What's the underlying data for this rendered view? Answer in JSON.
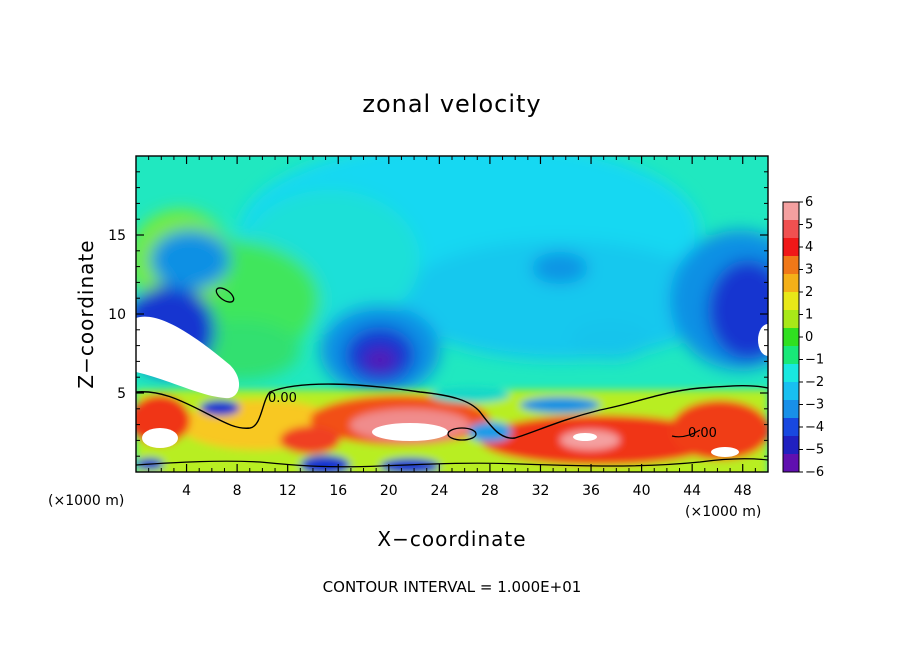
{
  "chart_data": {
    "type": "heatmap",
    "title": "zonal velocity",
    "xlabel": "X−coordinate",
    "ylabel": "Z−coordinate",
    "x_unit_left": "(×1000 m)",
    "x_unit_right": "(×1000 m)",
    "xlim": [
      0,
      50
    ],
    "ylim": [
      0,
      20
    ],
    "x_ticks": [
      4,
      8,
      12,
      16,
      20,
      24,
      28,
      32,
      36,
      40,
      44,
      48
    ],
    "x_tick_labels": [
      "4",
      "8",
      "12",
      "16",
      "20",
      "24",
      "28",
      "32",
      "36",
      "40",
      "44",
      "48"
    ],
    "y_ticks": [
      5,
      10,
      15
    ],
    "y_tick_labels": [
      "5",
      "10",
      "15"
    ],
    "colorbar": {
      "min": -6,
      "max": 6,
      "tick_values": [
        6,
        5,
        4,
        3,
        2,
        1,
        0,
        -1,
        -2,
        -3,
        -4,
        -5,
        -6
      ],
      "tick_labels": [
        "6",
        "5",
        "4",
        "3",
        "2",
        "1",
        "0",
        "−1",
        "−2",
        "−3",
        "−4",
        "−5",
        "−6"
      ]
    },
    "contour_labels": [
      "0.00",
      "0.00"
    ],
    "annotation": "CONTOUR INTERVAL = 1.000E+01",
    "field_features": [
      {
        "x": 4,
        "z": 8.5,
        "value": -7,
        "desc": "strong negative core (white region)"
      },
      {
        "x": 20,
        "z": 7.2,
        "value": -5.5
      },
      {
        "x": 48,
        "z": 10,
        "value": -5.5
      },
      {
        "x": 34,
        "z": 13,
        "value": -3
      },
      {
        "x": 5,
        "z": 12,
        "value": 0.5
      },
      {
        "x": 20,
        "z": 2.8,
        "value": 6
      },
      {
        "x": 35,
        "z": 2.2,
        "value": 5
      },
      {
        "x": 4,
        "z": 3,
        "value": 5
      }
    ]
  }
}
